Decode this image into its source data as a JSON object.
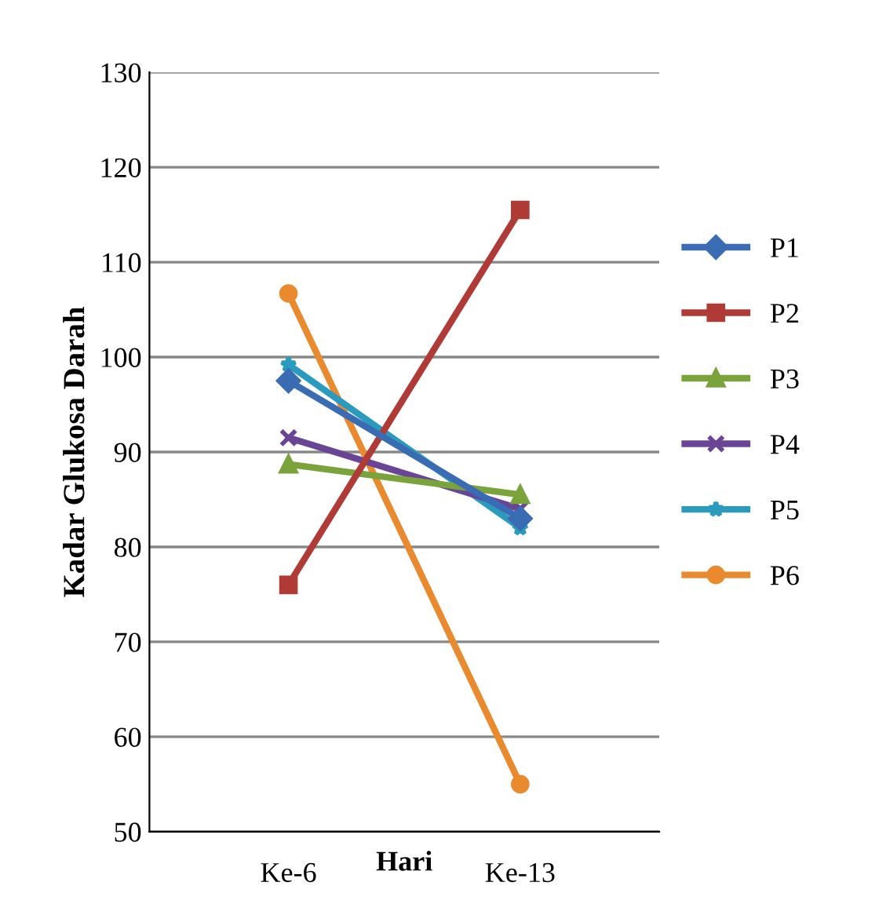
{
  "chart_data": {
    "type": "line",
    "xlabel": "Hari",
    "ylabel": "Kadar Glukosa Darah",
    "categories": [
      "Ke-6",
      "Ke-13"
    ],
    "series": [
      {
        "name": "P1",
        "color": "#3a6cb4",
        "values": [
          97.5,
          83
        ],
        "marker": "diamond"
      },
      {
        "name": "P2",
        "color": "#b03a36",
        "values": [
          76,
          115.5
        ],
        "marker": "square"
      },
      {
        "name": "P3",
        "color": "#7aa33c",
        "values": [
          88.7,
          85.5
        ],
        "marker": "triangle"
      },
      {
        "name": "P4",
        "color": "#6a4596",
        "values": [
          91.5,
          84
        ],
        "marker": "cross"
      },
      {
        "name": "P5",
        "color": "#2b9bbd",
        "values": [
          99.2,
          82
        ],
        "marker": "star"
      },
      {
        "name": "P6",
        "color": "#ea8a2e",
        "values": [
          106.7,
          55
        ],
        "marker": "circle"
      }
    ],
    "ylim": [
      50,
      130
    ],
    "yticks": [
      50,
      60,
      70,
      80,
      90,
      100,
      110,
      120,
      130
    ],
    "grid": "y",
    "legend": "right"
  }
}
